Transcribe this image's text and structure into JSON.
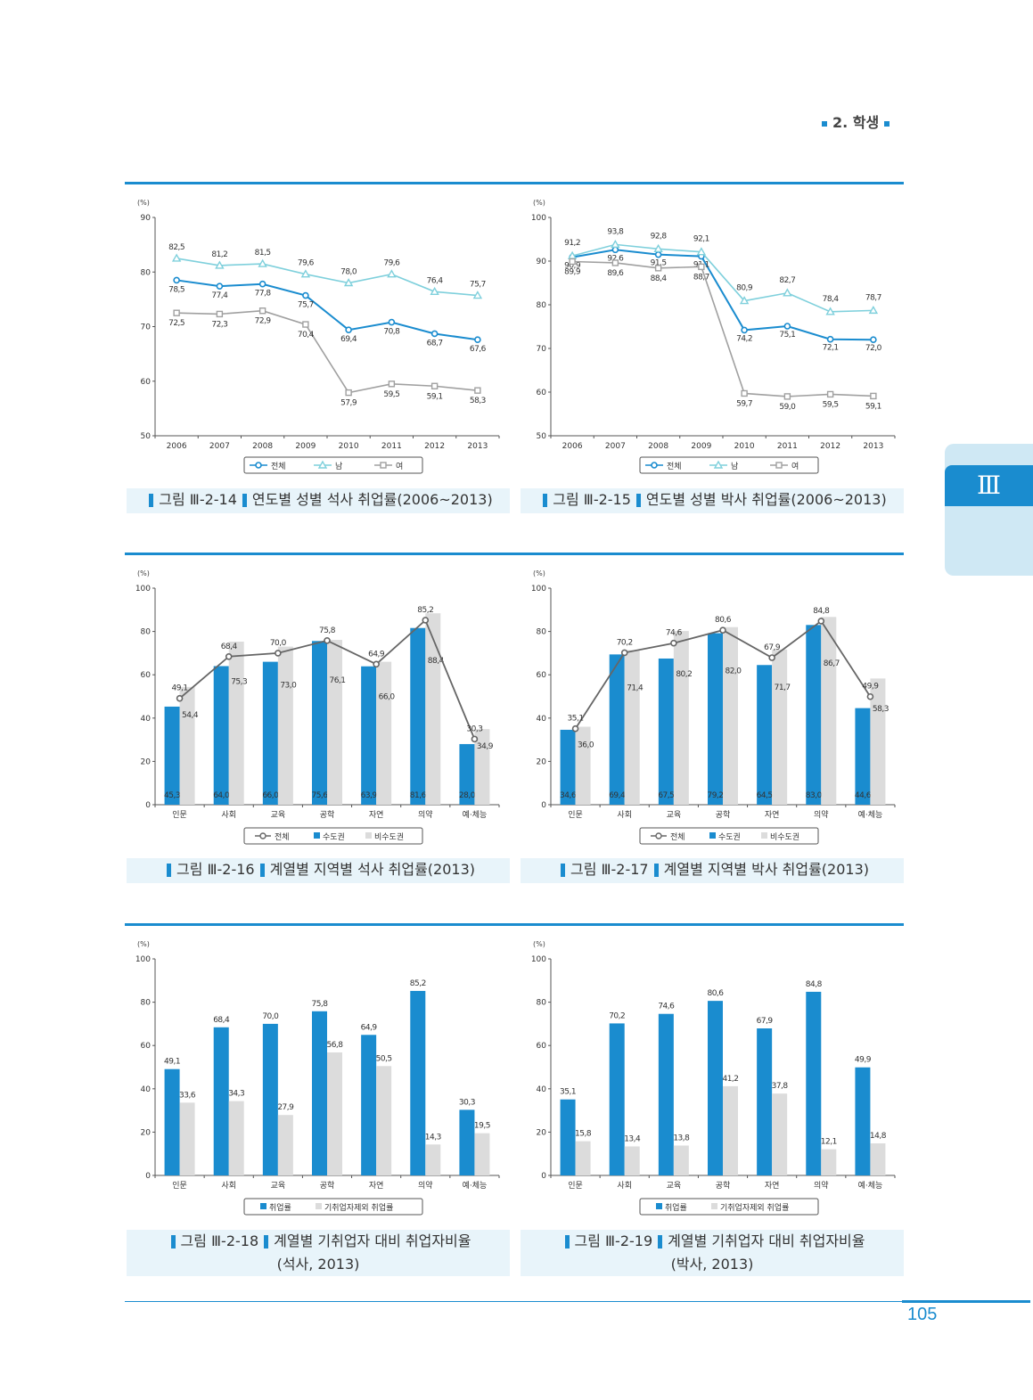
{
  "header": {
    "section": "2. 학생"
  },
  "side_tab": {
    "label": "Ⅲ"
  },
  "page_number": "105",
  "colors": {
    "accent": "#1a8ccf",
    "light_blue": "#7fd0dc",
    "gray": "#a0a0a0",
    "bar_gray": "#dcdcdc",
    "line_dark": "#666666"
  },
  "captions": [
    {
      "prefix": "그림 Ⅲ-2-14",
      "title": "연도별 성별 석사 취업률(2006~2013)"
    },
    {
      "prefix": "그림 Ⅲ-2-15",
      "title": "연도별 성별 박사 취업률(2006~2013)"
    },
    {
      "prefix": "그림 Ⅲ-2-16",
      "title": "계열별 지역별 석사 취업률(2013)"
    },
    {
      "prefix": "그림 Ⅲ-2-17",
      "title": "계열별 지역별 박사 취업률(2013)"
    },
    {
      "prefix": "그림 Ⅲ-2-18",
      "title": "계열별 기취업자 대비 취업자비율",
      "subtitle": "(석사, 2013)"
    },
    {
      "prefix": "그림 Ⅲ-2-19",
      "title": "계열별 기취업자 대비 취업자비율",
      "subtitle": "(박사, 2013)"
    }
  ],
  "chart_data": [
    {
      "type": "line",
      "unit": "(%)",
      "ylim": [
        50,
        90
      ],
      "yticks": [
        50,
        60,
        70,
        80,
        90
      ],
      "categories": [
        "2006",
        "2007",
        "2008",
        "2009",
        "2010",
        "2011",
        "2012",
        "2013"
      ],
      "series": [
        {
          "name": "전체",
          "values": [
            78.5,
            77.4,
            77.8,
            75.7,
            69.4,
            70.8,
            68.7,
            67.6
          ],
          "labels": [
            "78,5",
            "77,4",
            "77,8",
            "75,7",
            "69,4",
            "70,8",
            "68,7",
            "67,6"
          ]
        },
        {
          "name": "남",
          "values": [
            82.5,
            81.2,
            81.5,
            79.6,
            78.0,
            79.6,
            76.4,
            75.7
          ],
          "labels": [
            "82,5",
            "81,2",
            "81,5",
            "79,6",
            "78,0",
            "79,6",
            "76,4",
            "75,7"
          ]
        },
        {
          "name": "여",
          "values": [
            72.5,
            72.3,
            72.9,
            70.4,
            57.9,
            59.5,
            59.1,
            58.3
          ],
          "labels": [
            "72,5",
            "72,3",
            "72,9",
            "70,4",
            "57,9",
            "59,5",
            "59,1",
            "58,3"
          ]
        }
      ]
    },
    {
      "type": "line",
      "unit": "(%)",
      "ylim": [
        50,
        100
      ],
      "yticks": [
        50,
        60,
        70,
        80,
        90,
        100
      ],
      "categories": [
        "2006",
        "2007",
        "2008",
        "2009",
        "2010",
        "2011",
        "2012",
        "2013"
      ],
      "series": [
        {
          "name": "전체",
          "values": [
            90.9,
            92.6,
            91.5,
            91.1,
            74.2,
            75.1,
            72.1,
            72.0
          ],
          "labels": [
            "90,9",
            "92,6",
            "91,5",
            "91,1",
            "74,2",
            "75,1",
            "72,1",
            "72,0"
          ]
        },
        {
          "name": "남",
          "values": [
            91.2,
            93.8,
            92.8,
            92.1,
            80.9,
            82.7,
            78.4,
            78.7
          ],
          "labels": [
            "91,2",
            "93,8",
            "92,8",
            "92,1",
            "80,9",
            "82,7",
            "78,4",
            "78,7"
          ]
        },
        {
          "name": "여",
          "values": [
            89.9,
            89.6,
            88.4,
            88.7,
            59.7,
            59.0,
            59.5,
            59.1
          ],
          "labels": [
            "89,9",
            "89,6",
            "88,4",
            "88,7",
            "59,7",
            "59,0",
            "59,5",
            "59,1"
          ]
        }
      ]
    },
    {
      "type": "bar",
      "unit": "(%)",
      "ylim": [
        0,
        100
      ],
      "yticks": [
        0,
        20,
        40,
        60,
        80,
        100
      ],
      "categories": [
        "인문",
        "사회",
        "교육",
        "공학",
        "자연",
        "의약",
        "예·체능"
      ],
      "series": [
        {
          "name": "수도권",
          "values": [
            45.3,
            64.0,
            66.0,
            75.6,
            63.9,
            81.6,
            28.0
          ],
          "labels": [
            "45,3",
            "64,0",
            "66,0",
            "75,6",
            "63,9",
            "81,6",
            "28,0"
          ]
        },
        {
          "name": "비수도권",
          "values": [
            54.4,
            75.3,
            73.0,
            76.1,
            66.0,
            88.4,
            34.9
          ],
          "labels": [
            "54,4",
            "75,3",
            "73,0",
            "76,1",
            "66,0",
            "88,4",
            "34,9"
          ]
        }
      ],
      "line": {
        "name": "전체",
        "values": [
          49.1,
          68.4,
          70.0,
          75.8,
          64.9,
          85.2,
          30.3
        ],
        "labels": [
          "49,1",
          "68,4",
          "70,0",
          "75,8",
          "64,9",
          "85,2",
          "30,3"
        ]
      }
    },
    {
      "type": "bar",
      "unit": "(%)",
      "ylim": [
        0,
        100
      ],
      "yticks": [
        0,
        20,
        40,
        60,
        80,
        100
      ],
      "categories": [
        "인문",
        "사회",
        "교육",
        "공학",
        "자연",
        "의약",
        "예·체능"
      ],
      "series": [
        {
          "name": "수도권",
          "values": [
            34.6,
            69.4,
            67.5,
            79.2,
            64.5,
            83.0,
            44.6
          ],
          "labels": [
            "34,6",
            "69,4",
            "67,5",
            "79,2",
            "64,5",
            "83,0",
            "44,6"
          ]
        },
        {
          "name": "비수도권",
          "values": [
            36.0,
            71.4,
            80.2,
            82.0,
            71.7,
            86.7,
            58.3
          ],
          "labels": [
            "36,0",
            "71,4",
            "80,2",
            "82,0",
            "71,7",
            "86,7",
            "58,3"
          ]
        }
      ],
      "line": {
        "name": "전체",
        "values": [
          35.1,
          70.2,
          74.6,
          80.6,
          67.9,
          84.8,
          49.9
        ],
        "labels": [
          "35,1",
          "70,2",
          "74,6",
          "80,6",
          "67,9",
          "84,8",
          "49,9"
        ]
      }
    },
    {
      "type": "bar",
      "unit": "(%)",
      "ylim": [
        0,
        100
      ],
      "yticks": [
        0,
        20,
        40,
        60,
        80,
        100
      ],
      "categories": [
        "인문",
        "사회",
        "교육",
        "공학",
        "자연",
        "의약",
        "예·체능"
      ],
      "series": [
        {
          "name": "취업률",
          "values": [
            49.1,
            68.4,
            70.0,
            75.8,
            64.9,
            85.2,
            30.3
          ],
          "labels": [
            "49,1",
            "68,4",
            "70,0",
            "75,8",
            "64,9",
            "85,2",
            "30,3"
          ]
        },
        {
          "name": "기취업자제외 취업률",
          "values": [
            33.6,
            34.3,
            27.9,
            56.8,
            50.5,
            14.3,
            19.5
          ],
          "labels": [
            "33,6",
            "34,3",
            "27,9",
            "56,8",
            "50,5",
            "14,3",
            "19,5"
          ]
        }
      ]
    },
    {
      "type": "bar",
      "unit": "(%)",
      "ylim": [
        0,
        100
      ],
      "yticks": [
        0,
        20,
        40,
        60,
        80,
        100
      ],
      "categories": [
        "인문",
        "사회",
        "교육",
        "공학",
        "자연",
        "의약",
        "예·체능"
      ],
      "series": [
        {
          "name": "취업률",
          "values": [
            35.1,
            70.2,
            74.6,
            80.6,
            67.9,
            84.8,
            49.9
          ],
          "labels": [
            "35,1",
            "70,2",
            "74,6",
            "80,6",
            "67,9",
            "84,8",
            "49,9"
          ]
        },
        {
          "name": "기취업자제외 취업률",
          "values": [
            15.8,
            13.4,
            13.8,
            41.2,
            37.8,
            12.1,
            14.8
          ],
          "labels": [
            "15,8",
            "13,4",
            "13,8",
            "41,2",
            "37,8",
            "12,1",
            "14,8"
          ]
        }
      ]
    }
  ]
}
